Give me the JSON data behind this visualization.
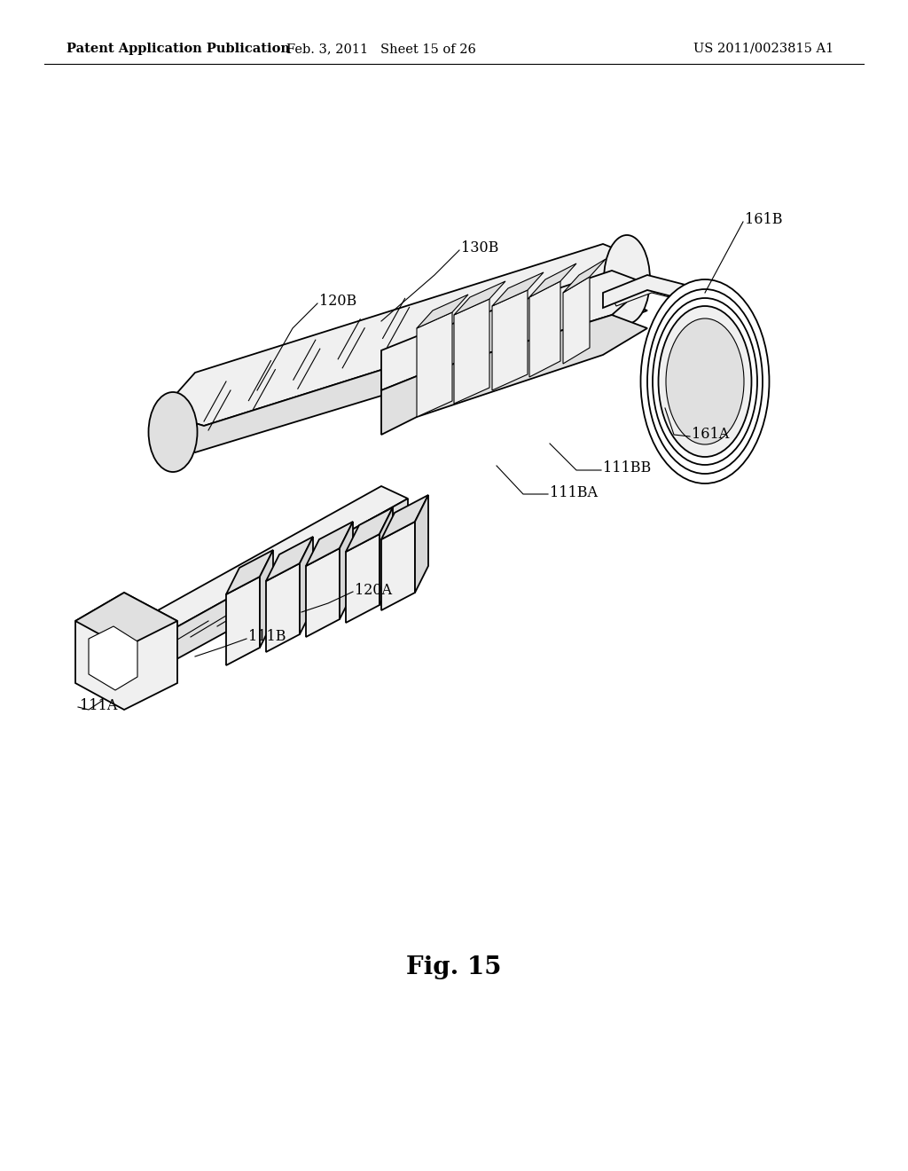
{
  "background_color": "#ffffff",
  "header_left": "Patent Application Publication",
  "header_center": "Feb. 3, 2011   Sheet 15 of 26",
  "header_right": "US 2011/0023815 A1",
  "figure_label": "Fig. 15",
  "header_fontsize": 10.5,
  "annotation_fontsize": 11.5,
  "fig_label_fontsize": 20
}
